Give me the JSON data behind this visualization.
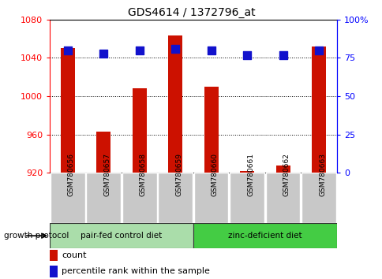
{
  "title": "GDS4614 / 1372796_at",
  "samples": [
    "GSM780656",
    "GSM780657",
    "GSM780658",
    "GSM780659",
    "GSM780660",
    "GSM780661",
    "GSM780662",
    "GSM780663"
  ],
  "counts": [
    1050,
    963,
    1008,
    1063,
    1010,
    922,
    928,
    1052
  ],
  "percentile_ranks": [
    80,
    78,
    80,
    81,
    80,
    77,
    77,
    80
  ],
  "ylim_left": [
    920,
    1080
  ],
  "ylim_right": [
    0,
    100
  ],
  "yticks_left": [
    920,
    960,
    1000,
    1040,
    1080
  ],
  "yticks_right": [
    0,
    25,
    50,
    75,
    100
  ],
  "ytick_labels_right": [
    "0",
    "25",
    "50",
    "75",
    "100%"
  ],
  "bar_color": "#cc1100",
  "dot_color": "#1111cc",
  "group1_label": "pair-fed control diet",
  "group2_label": "zinc-deficient diet",
  "group_protocol_label": "growth protocol",
  "legend_count_label": "count",
  "legend_percentile_label": "percentile rank within the sample",
  "group1_color": "#aaddaa",
  "group2_color": "#44cc44",
  "xlabel_bg_color": "#c8c8c8",
  "figsize": [
    4.85,
    3.54
  ],
  "dpi": 100,
  "bar_width": 0.4,
  "dot_size": 45
}
